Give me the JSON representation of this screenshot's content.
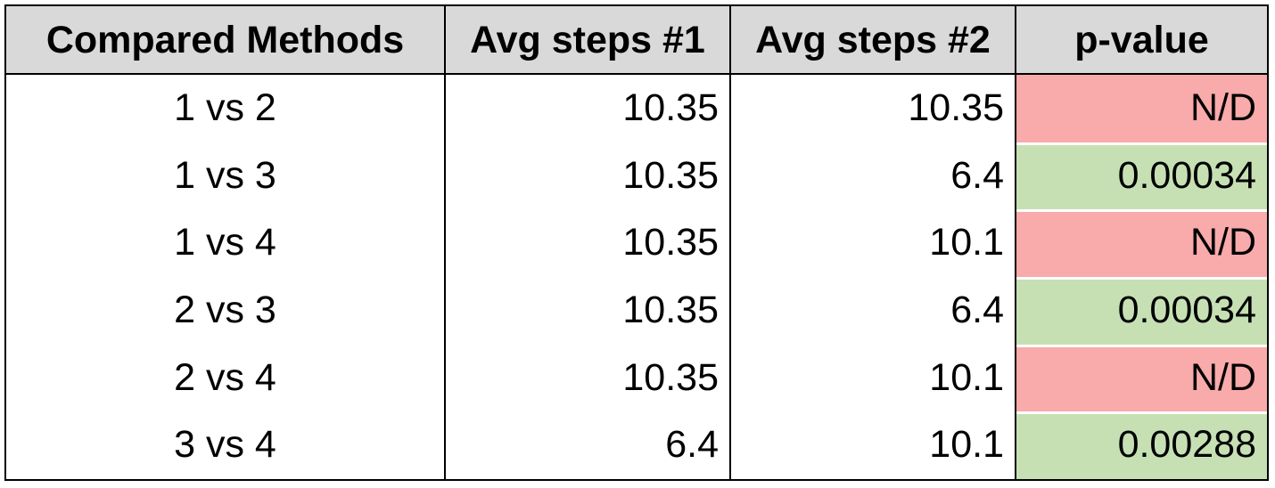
{
  "table": {
    "header": [
      "Compared Methods",
      "Avg steps #1",
      "Avg steps #2",
      "p-value"
    ],
    "rows": [
      [
        "1 vs 2",
        10.35,
        10.35,
        "N/D"
      ],
      [
        "1 vs 3",
        10.35,
        6.4,
        0.00034
      ],
      [
        "1 vs 4",
        10.35,
        10.1,
        "N/D"
      ],
      [
        "2 vs 3",
        10.35,
        6.4,
        0.00034
      ],
      [
        "2 vs 4",
        10.35,
        10.1,
        "N/D"
      ],
      [
        "3 vs 4",
        6.4,
        10.1,
        0.00288
      ]
    ],
    "p_value_colors": [
      "#f9aaaa",
      "#c6e0b4",
      "#f9aaaa",
      "#c6e0b4",
      "#f9aaaa",
      "#c6e0b4"
    ],
    "header_color": "#d9d9d9"
  }
}
